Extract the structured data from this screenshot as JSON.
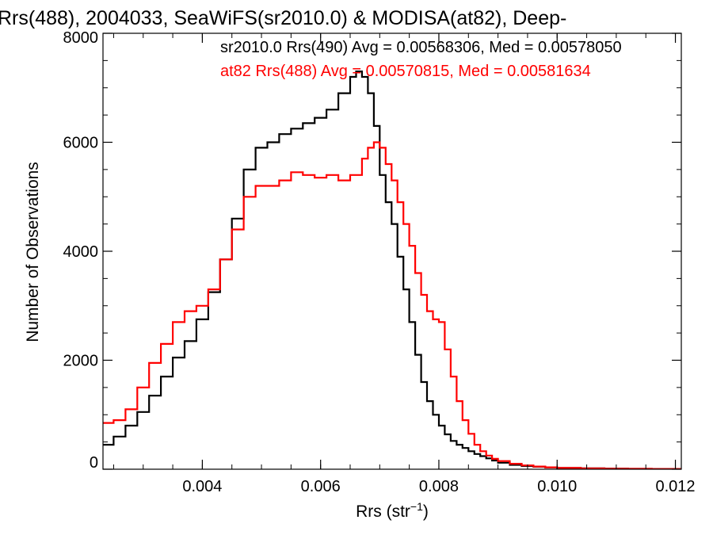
{
  "chart_data": {
    "type": "line",
    "title": "Rrs(488), 2004033, SeaWiFS(sr2010.0) & MODISA(at82), Deep-",
    "xlabel": "Rrs (str",
    "xlabel_sup": "−1",
    "xlabel_end": ")",
    "ylabel": "Number of Observations",
    "xlim": [
      0.00232,
      0.0121
    ],
    "ylim": [
      0,
      8000
    ],
    "x_ticks": [
      0.004,
      0.006,
      0.008,
      0.01,
      0.012
    ],
    "x_tick_labels": [
      "0.004",
      "0.006",
      "0.008",
      "0.010",
      "0.012"
    ],
    "y_ticks": [
      0,
      2000,
      4000,
      6000,
      8000
    ],
    "y_tick_labels": [
      "0",
      "2000",
      "4000",
      "6000",
      "8000"
    ],
    "x_minor_step": 0.0005,
    "y_minor_step": 500,
    "grid": false,
    "legend_placement": "top-right",
    "series": [
      {
        "name": "sr2010.0 Rrs(490) Avg = 0.00568306, Med = 0.00578050",
        "color": "#000000",
        "x": [
          0.00232,
          0.0025,
          0.0027,
          0.0029,
          0.0031,
          0.0033,
          0.0035,
          0.0037,
          0.0039,
          0.0041,
          0.0043,
          0.0045,
          0.0047,
          0.0049,
          0.0051,
          0.0053,
          0.0055,
          0.0057,
          0.0059,
          0.0061,
          0.0063,
          0.0065,
          0.0066,
          0.0067,
          0.0068,
          0.0069,
          0.007,
          0.0071,
          0.0072,
          0.0073,
          0.0074,
          0.0075,
          0.0076,
          0.0077,
          0.0078,
          0.0079,
          0.008,
          0.0081,
          0.0082,
          0.0083,
          0.0084,
          0.0085,
          0.0086,
          0.0087,
          0.0088,
          0.0089,
          0.009,
          0.0092,
          0.0094,
          0.0096,
          0.0098,
          0.01,
          0.0104,
          0.0108,
          0.0112,
          0.0116,
          0.0121
        ],
        "y": [
          450,
          600,
          800,
          1050,
          1350,
          1700,
          2050,
          2350,
          2750,
          3250,
          3850,
          4600,
          5500,
          5900,
          6000,
          6150,
          6250,
          6350,
          6450,
          6600,
          6900,
          7200,
          7300,
          7200,
          6900,
          6300,
          5400,
          4900,
          4500,
          3900,
          3300,
          2700,
          2100,
          1600,
          1250,
          1000,
          800,
          640,
          520,
          450,
          390,
          330,
          280,
          240,
          200,
          160,
          120,
          80,
          60,
          45,
          35,
          25,
          18,
          12,
          8,
          5,
          3
        ]
      },
      {
        "name": "at82 Rrs(488) Avg = 0.00570815, Med = 0.00581634",
        "color": "#ff0000",
        "x": [
          0.00232,
          0.0025,
          0.0027,
          0.0029,
          0.0031,
          0.0033,
          0.0035,
          0.0037,
          0.0039,
          0.0041,
          0.0043,
          0.0045,
          0.0047,
          0.0049,
          0.0051,
          0.0053,
          0.0055,
          0.0057,
          0.0059,
          0.0061,
          0.0063,
          0.0065,
          0.0067,
          0.0068,
          0.0069,
          0.007,
          0.0071,
          0.0072,
          0.0073,
          0.0074,
          0.0075,
          0.0076,
          0.0077,
          0.0078,
          0.0079,
          0.008,
          0.0081,
          0.0082,
          0.0083,
          0.0084,
          0.0085,
          0.0086,
          0.0087,
          0.0088,
          0.0089,
          0.009,
          0.0092,
          0.0094,
          0.0096,
          0.0098,
          0.01,
          0.0104,
          0.0108,
          0.0112,
          0.0116,
          0.0121
        ],
        "y": [
          850,
          900,
          1100,
          1500,
          1950,
          2300,
          2700,
          2900,
          3000,
          3300,
          3850,
          4400,
          5000,
          5200,
          5200,
          5300,
          5450,
          5400,
          5350,
          5400,
          5300,
          5400,
          5700,
          5900,
          6000,
          5900,
          5600,
          5300,
          4900,
          4500,
          4100,
          3600,
          3200,
          2900,
          2750,
          2700,
          2200,
          1700,
          1250,
          900,
          650,
          450,
          330,
          250,
          190,
          150,
          100,
          70,
          50,
          35,
          25,
          15,
          10,
          7,
          5,
          3
        ]
      }
    ]
  }
}
